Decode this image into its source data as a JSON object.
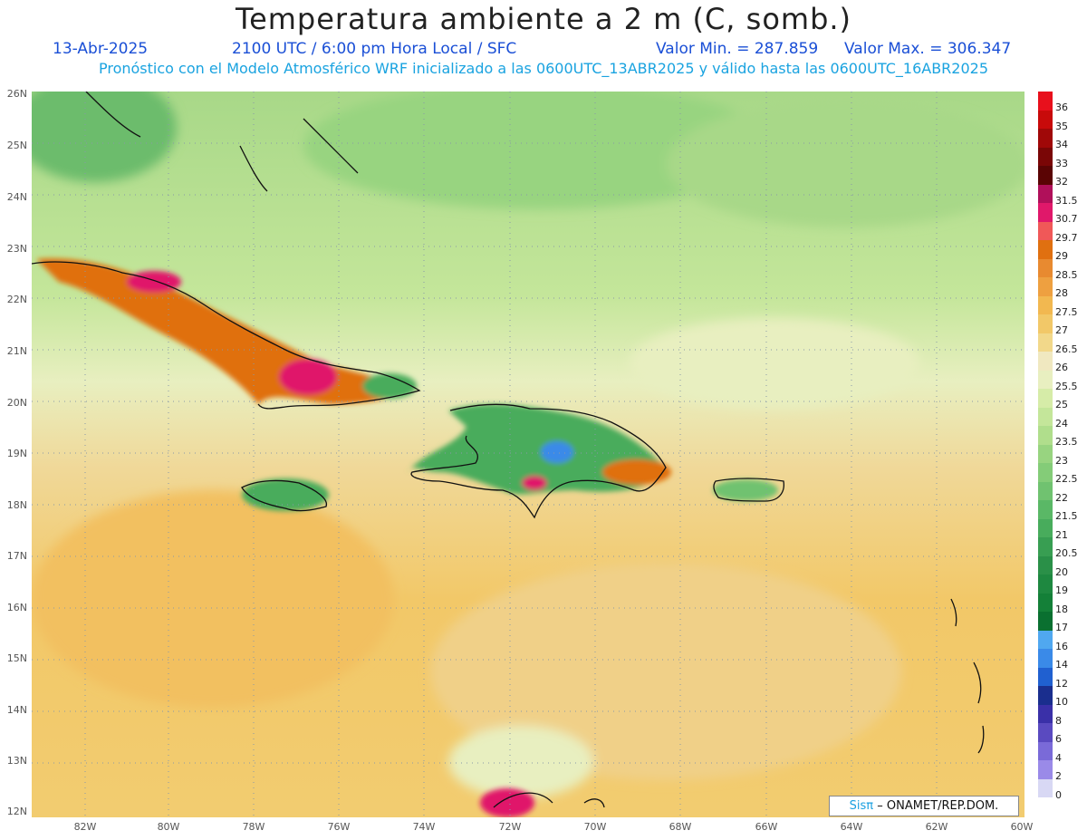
{
  "header": {
    "title": "Temperatura ambiente a 2 m (C, somb.)",
    "date": "13-Abr-2025",
    "time": "2100 UTC / 6:00 pm Hora Local / SFC",
    "min": "Valor Min. = 287.859",
    "max": "Valor Max. = 306.347",
    "subtitle": "Pronóstico con el Modelo Atmosférico WRF inicializado a las 0600UTC_13ABR2025 y válido hasta las  0600UTC_16ABR2025"
  },
  "axes": {
    "lat_labels": [
      "26N",
      "25N",
      "24N",
      "23N",
      "22N",
      "21N",
      "20N",
      "19N",
      "18N",
      "17N",
      "16N",
      "15N",
      "14N",
      "13N",
      "12N"
    ],
    "lon_labels": [
      "82W",
      "80W",
      "78W",
      "76W",
      "74W",
      "72W",
      "70W",
      "68W",
      "66W",
      "64W",
      "62W",
      "60W"
    ]
  },
  "colorbar": {
    "labels": [
      "36",
      "35",
      "34",
      "33",
      "32",
      "31.5",
      "30.7",
      "29.7",
      "29",
      "28.5",
      "28",
      "27.5",
      "27",
      "26.5",
      "26",
      "25.5",
      "25",
      "24",
      "23.5",
      "23",
      "22.5",
      "22",
      "21.5",
      "21",
      "20.5",
      "20",
      "19",
      "18",
      "17",
      "16",
      "14",
      "12",
      "10",
      "8",
      "6",
      "4",
      "2",
      "0"
    ],
    "colors": [
      "#e8101c",
      "#c80a0a",
      "#a00808",
      "#7a0606",
      "#5a0404",
      "#b0105a",
      "#e0186a",
      "#f05858",
      "#e07010",
      "#e88a30",
      "#eea040",
      "#f2b850",
      "#f2c868",
      "#f2d88a",
      "#f0e8c0",
      "#e8efc0",
      "#d6eca8",
      "#c4e69a",
      "#b0de8c",
      "#98d480",
      "#84cc78",
      "#70c270",
      "#5ab866",
      "#48ac5c",
      "#389e52",
      "#2a9048",
      "#1e8840",
      "#148038",
      "#0a7030",
      "#50a8f0",
      "#3a8ae8",
      "#2060d0",
      "#1a2e8e",
      "#3a30a8",
      "#5a4ac0",
      "#7a6ad8",
      "#9a8ae8",
      "#d8d8f4"
    ]
  },
  "map_data": {
    "colors": {
      "ocean_warm": "#f2c868",
      "ocean_mid": "#f0d898",
      "ocean_cool": "#e8efc0",
      "north_green": "#a8d888",
      "land_green": "#48ac5c",
      "land_hot": "#e07010",
      "land_very_hot": "#e0186a",
      "land_cold": "#3a8ae8",
      "grid": "#8898a8",
      "coast": "#111111"
    }
  },
  "credit": {
    "brand": "Sisπ",
    "text": "– ONAMET/REP.DOM."
  }
}
